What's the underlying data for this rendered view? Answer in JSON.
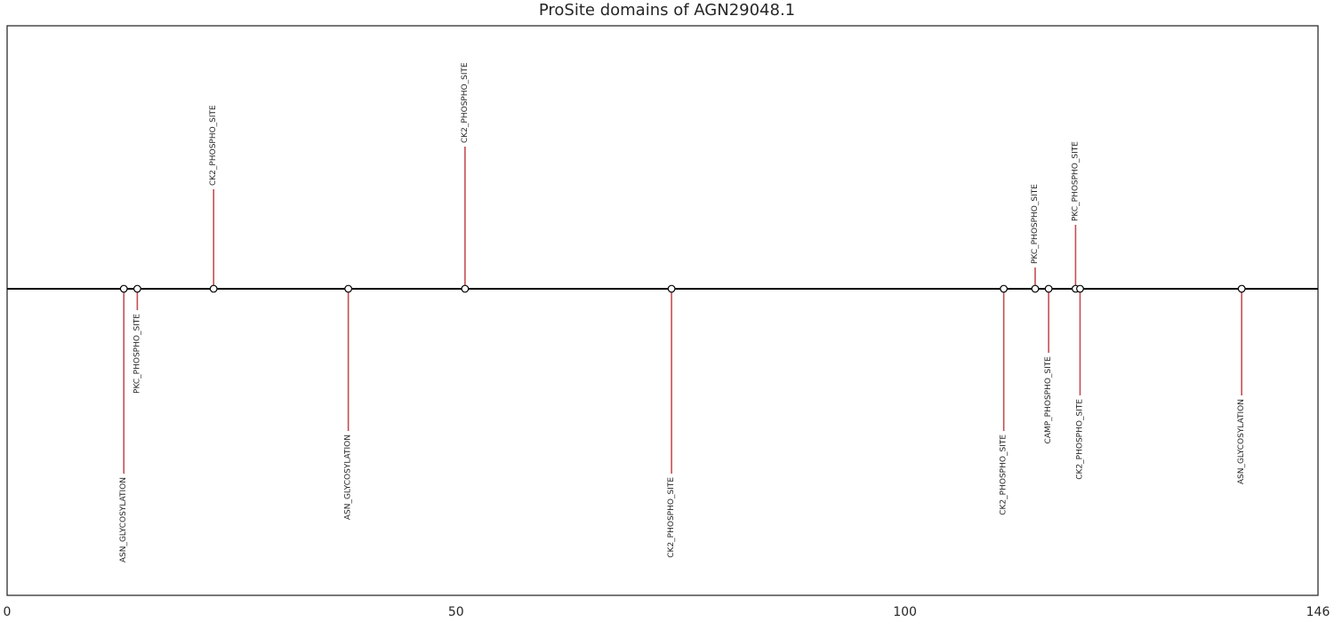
{
  "chart_data": {
    "type": "lollipop",
    "title": "ProSite domains of AGN29048.1",
    "xlabel": "",
    "ylabel": "",
    "xlim": [
      0,
      146
    ],
    "x_ticks": [
      0,
      50,
      100,
      146
    ],
    "grid": false,
    "legend": "none",
    "colors": {
      "stem": "#c44e52",
      "backbone": "#000000",
      "marker_face": "#ffffff",
      "marker_edge": "#000000",
      "frame": "#262626"
    },
    "sites": [
      {
        "label": "ASN_GLYCOSYLATION",
        "position": 13,
        "height": -1.3
      },
      {
        "label": "PKC_PHOSPHO_SITE",
        "position": 14.5,
        "height": -0.15
      },
      {
        "label": "CK2_PHOSPHO_SITE",
        "position": 23,
        "height": 0.7
      },
      {
        "label": "ASN_GLYCOSYLATION",
        "position": 38,
        "height": -1.0
      },
      {
        "label": "CK2_PHOSPHO_SITE",
        "position": 51,
        "height": 1.0
      },
      {
        "label": "CK2_PHOSPHO_SITE",
        "position": 74,
        "height": -1.3
      },
      {
        "label": "CK2_PHOSPHO_SITE",
        "position": 111,
        "height": -1.0
      },
      {
        "label": "PKC_PHOSPHO_SITE",
        "position": 114.5,
        "height": 0.15
      },
      {
        "label": "CAMP_PHOSPHO_SITE",
        "position": 116,
        "height": -0.45
      },
      {
        "label": "PKC_PHOSPHO_SITE",
        "position": 119,
        "height": 0.45
      },
      {
        "label": "CK2_PHOSPHO_SITE",
        "position": 119.5,
        "height": -0.75
      },
      {
        "label": "ASN_GLYCOSYLATION",
        "position": 137.5,
        "height": -0.75
      }
    ]
  }
}
